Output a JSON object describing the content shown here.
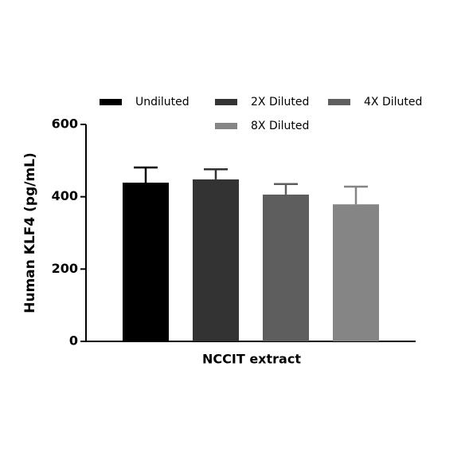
{
  "chart_data": {
    "type": "bar",
    "y_label": "Human KLF4 (pg/mL)",
    "categories": [
      "NCCIT extract"
    ],
    "series": [
      {
        "name": "Undiluted",
        "color": "#000000",
        "values": [
          439
        ],
        "errors": [
          42
        ]
      },
      {
        "name": "2X Diluted",
        "color": "#333333",
        "values": [
          448
        ],
        "errors": [
          28
        ]
      },
      {
        "name": "4X Diluted",
        "color": "#5e5e5e",
        "values": [
          406
        ],
        "errors": [
          29
        ]
      },
      {
        "name": "8X Diluted",
        "color": "#858585",
        "values": [
          379
        ],
        "errors": [
          49
        ]
      }
    ],
    "ylim": [
      0,
      600
    ],
    "yticks": [
      0,
      200,
      400,
      600
    ],
    "grid": false
  }
}
